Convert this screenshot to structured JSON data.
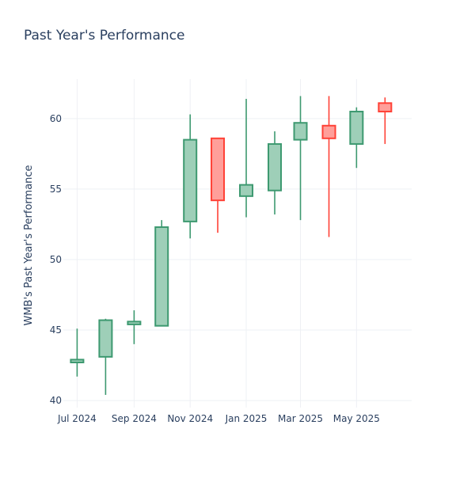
{
  "chart_data": {
    "type": "candlestick",
    "title": "Past Year's Performance",
    "ylabel": "WMB's Past Year's Performance",
    "xlabel": "",
    "ylim": [
      39.5,
      62.8
    ],
    "xlim": [
      "2024-06-16",
      "2025-06-30"
    ],
    "y_ticks": [
      40,
      45,
      50,
      55,
      60
    ],
    "x_ticks": [
      {
        "date": "2024-07-01",
        "label": "Jul 2024"
      },
      {
        "date": "2024-09-01",
        "label": "Sep 2024"
      },
      {
        "date": "2024-11-01",
        "label": "Nov 2024"
      },
      {
        "date": "2025-01-01",
        "label": "Jan 2025"
      },
      {
        "date": "2025-03-01",
        "label": "Mar 2025"
      },
      {
        "date": "2025-05-01",
        "label": "May 2025"
      }
    ],
    "colors": {
      "increasing_line": "#3d9970",
      "increasing_fill": "#9ecfb8",
      "decreasing_line": "#ff4136",
      "decreasing_fill": "#ff9f9a",
      "grid": "#eef0f4",
      "text": "#2a3f5f"
    },
    "grid": true,
    "candles": [
      {
        "date": "2024-07-01",
        "open": 42.7,
        "high": 45.1,
        "low": 41.7,
        "close": 42.9
      },
      {
        "date": "2024-08-01",
        "open": 43.1,
        "high": 45.8,
        "low": 40.4,
        "close": 45.7
      },
      {
        "date": "2024-09-01",
        "open": 45.4,
        "high": 46.4,
        "low": 44.0,
        "close": 45.6
      },
      {
        "date": "2024-10-01",
        "open": 45.3,
        "high": 52.8,
        "low": 45.3,
        "close": 52.3
      },
      {
        "date": "2024-11-01",
        "open": 52.7,
        "high": 60.3,
        "low": 51.5,
        "close": 58.5
      },
      {
        "date": "2024-12-01",
        "open": 58.6,
        "high": 58.6,
        "low": 51.9,
        "close": 54.2
      },
      {
        "date": "2025-01-01",
        "open": 54.5,
        "high": 61.4,
        "low": 53.0,
        "close": 55.3
      },
      {
        "date": "2025-02-01",
        "open": 54.9,
        "high": 59.1,
        "low": 53.2,
        "close": 58.2
      },
      {
        "date": "2025-03-01",
        "open": 58.5,
        "high": 61.6,
        "low": 52.8,
        "close": 59.7
      },
      {
        "date": "2025-04-01",
        "open": 59.5,
        "high": 61.6,
        "low": 51.6,
        "close": 58.6
      },
      {
        "date": "2025-05-01",
        "open": 58.2,
        "high": 60.8,
        "low": 56.5,
        "close": 60.5
      },
      {
        "date": "2025-06-01",
        "open": 61.1,
        "high": 61.5,
        "low": 58.2,
        "close": 60.5
      }
    ]
  }
}
